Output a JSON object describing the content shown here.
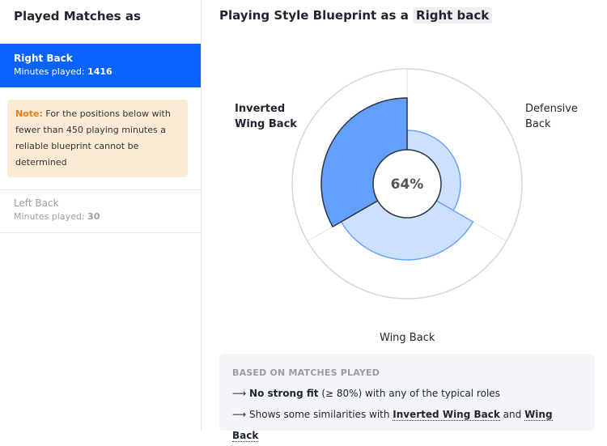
{
  "sidebar": {
    "title": "Played Matches as",
    "active": {
      "name": "Right Back",
      "minutes_label": "Minutes played:",
      "minutes": "1416"
    },
    "note": {
      "label": "Note:",
      "text": "For the positions below with fewer than 450 playing minutes a reliable blueprint cannot be determined"
    },
    "inactive": [
      {
        "name": "Left Back",
        "minutes_label": "Minutes played:",
        "minutes": "30"
      }
    ]
  },
  "main": {
    "title": "Playing Style Blueprint as a",
    "position": "Right back"
  },
  "chart_data": {
    "type": "radial-bar",
    "center_label": "64%",
    "categories": [
      "Defensive Back",
      "Wing Back",
      "Inverted Wing Back"
    ],
    "values": [
      24,
      52,
      64
    ],
    "highlight": "Inverted Wing Back",
    "range": [
      0,
      100
    ],
    "colors": {
      "highlight": "#64a0fb",
      "other": "#cde1fe",
      "other_stroke": "#6aa4ff",
      "grid": "#d6d6d6"
    }
  },
  "labels": {
    "defensive": "Defensive Back",
    "wing": "Wing Back",
    "inverted": "Inverted Wing Back"
  },
  "summary": {
    "heading": "BASED ON MATCHES PLAYED",
    "arrow": "⟶",
    "line1": {
      "bold": "No strong fit",
      "rest": "(≥ 80%) with any of the typical roles"
    },
    "line2": {
      "pre": "Shows some similarities with",
      "role1": "Inverted Wing Back",
      "and": "and",
      "role2": "Wing Back"
    }
  }
}
